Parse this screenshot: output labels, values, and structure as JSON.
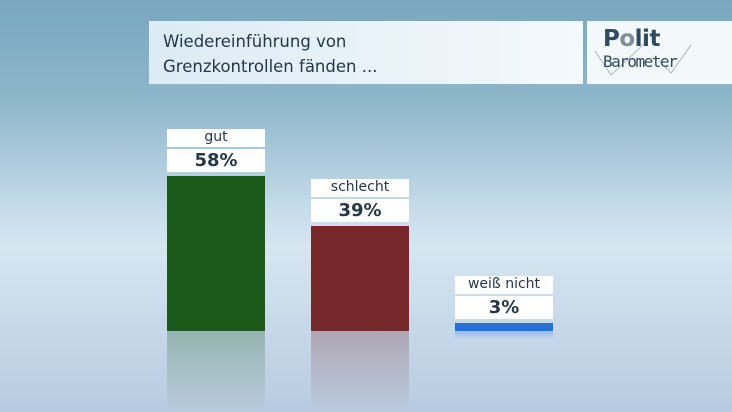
{
  "title": {
    "line1": "Wiedereinführung von",
    "line2": "Grenzkontrollen fänden ..."
  },
  "logo": {
    "text_top": "Polit",
    "text_bottom": "Barometer"
  },
  "chart_data": {
    "type": "bar",
    "categories": [
      "gut",
      "schlecht",
      "weiß nicht"
    ],
    "values": [
      58,
      39,
      3
    ],
    "value_labels": [
      "58%",
      "39%",
      "3%"
    ],
    "colors": [
      "#1b5a1b",
      "#76282a",
      "#1f74d6"
    ],
    "unit": "%",
    "ylim": [
      0,
      100
    ],
    "grid": false
  }
}
